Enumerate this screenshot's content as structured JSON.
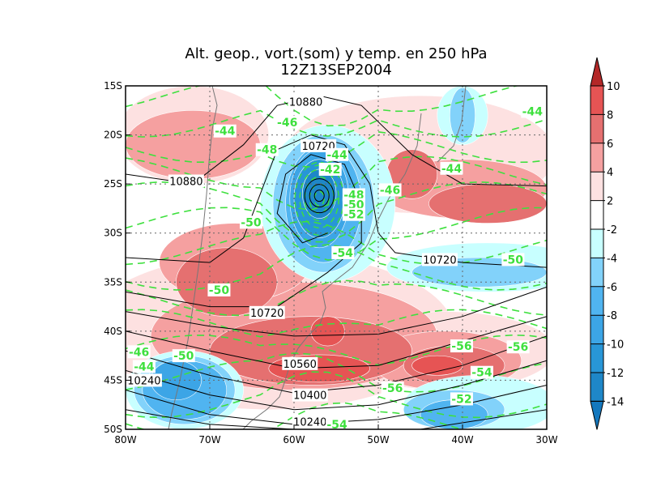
{
  "chart_data": {
    "type": "contour-map",
    "title": "Alt. geop., vort.(som) y temp. en 250 hPa",
    "subtitle": "12Z13SEP2004",
    "x_axis": {
      "range_lon_w": [
        80,
        30
      ],
      "ticks": [
        "80W",
        "70W",
        "60W",
        "50W",
        "40W",
        "30W"
      ],
      "tick_values": [
        80,
        70,
        60,
        50,
        40,
        30
      ]
    },
    "y_axis": {
      "range_lat_s": [
        15,
        50
      ],
      "ticks": [
        "15S",
        "20S",
        "25S",
        "30S",
        "35S",
        "40S",
        "45S",
        "50S"
      ],
      "tick_values": [
        15,
        20,
        25,
        30,
        35,
        40,
        45,
        50
      ]
    },
    "grid": "dotted",
    "colorbar": {
      "labels": [
        "10",
        "8",
        "6",
        "4",
        "2",
        "-2",
        "-4",
        "-6",
        "-8",
        "-10",
        "-12",
        "-14"
      ],
      "levels": [
        10,
        8,
        6,
        4,
        2,
        -2,
        -4,
        -6,
        -8,
        -10,
        -12,
        -14
      ],
      "colors": [
        "#e65454",
        "#e57070",
        "#f5a0a0",
        "#fde1e1",
        "#ffffff",
        "#c8ffff",
        "#82d2fa",
        "#50b4f0",
        "#3ca5e6",
        "#2896d7",
        "#1e87c8"
      ],
      "over_color": "#b42828",
      "under_color": "#1478be"
    },
    "vorticity_fields": [
      {
        "level": 3,
        "lon": 63,
        "lat": 40,
        "rlon": 22,
        "rlat": 8
      },
      {
        "level": 3,
        "lon": 45,
        "lat": 22,
        "rlon": 16,
        "rlat": 6
      },
      {
        "level": 3,
        "lon": 72,
        "lat": 20,
        "rlon": 9,
        "rlat": 5
      },
      {
        "level": 3,
        "lon": 42,
        "lat": 42,
        "rlon": 13,
        "rlat": 4
      },
      {
        "level": 5,
        "lon": 60,
        "lat": 40.5,
        "rlon": 17,
        "rlat": 5.5
      },
      {
        "level": 5,
        "lon": 72,
        "lat": 21,
        "rlon": 8,
        "rlat": 3.5
      },
      {
        "level": 5,
        "lon": 40,
        "lat": 25.5,
        "rlon": 10,
        "rlat": 3
      },
      {
        "level": 5,
        "lon": 67,
        "lat": 33,
        "rlon": 9,
        "rlat": 4
      },
      {
        "level": 5,
        "lon": 42,
        "lat": 43,
        "rlon": 9,
        "rlat": 3
      },
      {
        "level": 7,
        "lon": 58,
        "lat": 42,
        "rlon": 12,
        "rlat": 3.5
      },
      {
        "level": 7,
        "lon": 68,
        "lat": 35,
        "rlon": 6,
        "rlat": 3.5
      },
      {
        "level": 7,
        "lon": 46,
        "lat": 24,
        "rlon": 3,
        "rlat": 2.5
      },
      {
        "level": 7,
        "lon": 37,
        "lat": 27,
        "rlon": 7,
        "rlat": 2
      },
      {
        "level": 7,
        "lon": 41,
        "lat": 43.5,
        "rlon": 6,
        "rlat": 2
      },
      {
        "level": 9,
        "lon": 57,
        "lat": 43.8,
        "rlon": 6,
        "rlat": 1.4
      },
      {
        "level": 9,
        "lon": 56,
        "lat": 40,
        "rlon": 2,
        "rlat": 1.5
      },
      {
        "level": 9,
        "lon": 43,
        "lat": 43.5,
        "rlon": 3,
        "rlat": 1
      },
      {
        "level": -3,
        "lon": 56,
        "lat": 27,
        "rlon": 8,
        "rlat": 8
      },
      {
        "level": -3,
        "lon": 37,
        "lat": 33.5,
        "rlon": 12,
        "rlat": 2.5
      },
      {
        "level": -3,
        "lon": 38,
        "lat": 47.5,
        "rlon": 9,
        "rlat": 3
      },
      {
        "level": -3,
        "lon": 73,
        "lat": 46,
        "rlon": 7,
        "rlat": 4
      },
      {
        "level": -3,
        "lon": 40,
        "lat": 18,
        "rlon": 3,
        "rlat": 3
      },
      {
        "level": -5,
        "lon": 56.5,
        "lat": 27,
        "rlon": 6,
        "rlat": 7
      },
      {
        "level": -5,
        "lon": 38,
        "lat": 34,
        "rlon": 8,
        "rlat": 1.5
      },
      {
        "level": -5,
        "lon": 41,
        "lat": 48,
        "rlon": 6,
        "rlat": 2
      },
      {
        "level": -5,
        "lon": 73,
        "lat": 46,
        "rlon": 6,
        "rlat": 3.5
      },
      {
        "level": -5,
        "lon": 40,
        "lat": 18,
        "rlon": 1.5,
        "rlat": 2.8
      },
      {
        "level": -7,
        "lon": 56.5,
        "lat": 27,
        "rlon": 4.5,
        "rlat": 6
      },
      {
        "level": -7,
        "lon": 73,
        "lat": 46,
        "rlon": 5,
        "rlat": 3
      },
      {
        "level": -7,
        "lon": 41,
        "lat": 48.5,
        "rlon": 4,
        "rlat": 1.5
      },
      {
        "level": -9,
        "lon": 57,
        "lat": 26.5,
        "rlon": 3.5,
        "rlat": 5
      },
      {
        "level": -9,
        "lon": 74,
        "lat": 45,
        "rlon": 3,
        "rlat": 2
      },
      {
        "level": -11,
        "lon": 57,
        "lat": 26.5,
        "rlon": 3,
        "rlat": 4
      },
      {
        "level": -13,
        "lon": 57,
        "lat": 26,
        "rlon": 2,
        "rlat": 2.5
      }
    ],
    "geopotential_lines": [
      [
        [
          80,
          24
        ],
        [
          72,
          25
        ],
        [
          66,
          21
        ],
        [
          62,
          17
        ],
        [
          57,
          16
        ],
        [
          52,
          17
        ],
        [
          46,
          22
        ],
        [
          40,
          25
        ],
        [
          30,
          25.2
        ]
      ],
      [
        [
          80,
          32.5
        ],
        [
          70,
          33
        ],
        [
          66,
          30.5
        ],
        [
          64,
          26
        ],
        [
          62,
          21.5
        ],
        [
          58,
          20
        ],
        [
          54,
          21
        ],
        [
          51,
          25
        ],
        [
          50,
          30
        ],
        [
          48,
          32
        ],
        [
          40,
          33
        ],
        [
          30,
          33.5
        ]
      ],
      [
        [
          80,
          36
        ],
        [
          70,
          37.5
        ],
        [
          62,
          37.5
        ],
        [
          56,
          34
        ],
        [
          52,
          31
        ],
        [
          52,
          27
        ],
        [
          54,
          23
        ],
        [
          58,
          22
        ],
        [
          61,
          24
        ],
        [
          62,
          28
        ],
        [
          59,
          31
        ],
        [
          56,
          30
        ]
      ],
      [
        [
          80,
          38
        ],
        [
          70,
          39.5
        ],
        [
          60,
          40.5
        ],
        [
          50,
          40.3
        ],
        [
          40,
          38.5
        ],
        [
          30,
          35.5
        ]
      ],
      [
        [
          80,
          40
        ],
        [
          70,
          42
        ],
        [
          60,
          43.8
        ],
        [
          50,
          43.5
        ],
        [
          40,
          41
        ],
        [
          30,
          38.5
        ]
      ],
      [
        [
          80,
          42
        ],
        [
          70,
          44.5
        ],
        [
          60,
          46.3
        ],
        [
          50,
          45.5
        ],
        [
          40,
          43.5
        ],
        [
          30,
          40.5
        ]
      ],
      [
        [
          80,
          44
        ],
        [
          70,
          46.5
        ],
        [
          60,
          48
        ],
        [
          50,
          47.5
        ],
        [
          40,
          45.5
        ],
        [
          30,
          43
        ]
      ],
      [
        [
          80,
          46
        ],
        [
          70,
          48.5
        ],
        [
          60,
          49.5
        ],
        [
          50,
          49
        ],
        [
          40,
          47.5
        ],
        [
          30,
          45.5
        ]
      ],
      [
        [
          80,
          48
        ],
        [
          70,
          49.5
        ],
        [
          60,
          50
        ],
        [
          45,
          50
        ],
        [
          30,
          48
        ]
      ]
    ],
    "geopotential_labels": [
      {
        "text": "10880",
        "lon": 58.6,
        "lat": 16.6
      },
      {
        "text": "10720",
        "lon": 57.1,
        "lat": 21.1
      },
      {
        "text": "10880",
        "lon": 72.8,
        "lat": 24.7
      },
      {
        "text": "10720",
        "lon": 42.7,
        "lat": 32.7
      },
      {
        "text": "10720",
        "lon": 63.2,
        "lat": 38.1
      },
      {
        "text": "10560",
        "lon": 59.3,
        "lat": 43.3
      },
      {
        "text": "10400",
        "lon": 58.1,
        "lat": 46.5
      },
      {
        "text": "10240",
        "lon": 77.8,
        "lat": 45.0
      },
      {
        "text": "10240",
        "lon": 58.1,
        "lat": 49.2
      }
    ],
    "temperature_labels": [
      {
        "text": "-44",
        "lon": 68.2,
        "lat": 19.6
      },
      {
        "text": "-46",
        "lon": 60.8,
        "lat": 18.7
      },
      {
        "text": "-48",
        "lon": 63.2,
        "lat": 21.5
      },
      {
        "text": "-44",
        "lon": 54.9,
        "lat": 22.0
      },
      {
        "text": "-42",
        "lon": 55.7,
        "lat": 23.5
      },
      {
        "text": "-48",
        "lon": 52.9,
        "lat": 26.1
      },
      {
        "text": "-50",
        "lon": 52.9,
        "lat": 27.1
      },
      {
        "text": "-52",
        "lon": 52.9,
        "lat": 28.1
      },
      {
        "text": "-46",
        "lon": 48.6,
        "lat": 25.6
      },
      {
        "text": "-50",
        "lon": 65.1,
        "lat": 28.9
      },
      {
        "text": "-54",
        "lon": 54.2,
        "lat": 32.0
      },
      {
        "text": "-44",
        "lon": 41.3,
        "lat": 23.4
      },
      {
        "text": "-44",
        "lon": 31.7,
        "lat": 17.6
      },
      {
        "text": "-50",
        "lon": 34.0,
        "lat": 32.7
      },
      {
        "text": "-50",
        "lon": 68.9,
        "lat": 35.8
      },
      {
        "text": "-56",
        "lon": 40.1,
        "lat": 41.5
      },
      {
        "text": "-56",
        "lon": 33.4,
        "lat": 41.6
      },
      {
        "text": "-54",
        "lon": 37.7,
        "lat": 44.2
      },
      {
        "text": "-52",
        "lon": 40.1,
        "lat": 46.9
      },
      {
        "text": "-56",
        "lon": 48.3,
        "lat": 45.8
      },
      {
        "text": "-50",
        "lon": 73.1,
        "lat": 42.5
      },
      {
        "text": "-46",
        "lon": 78.4,
        "lat": 42.1
      },
      {
        "text": "-44",
        "lon": 77.8,
        "lat": 43.6
      },
      {
        "text": "-54",
        "lon": 54.9,
        "lat": 49.5
      }
    ]
  }
}
